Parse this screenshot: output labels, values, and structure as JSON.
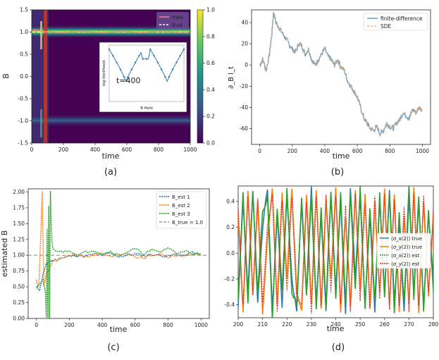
{
  "chart_data": [
    {
      "id": "a",
      "panel_label": "(a)",
      "type": "heatmap",
      "xlabel": "time",
      "ylabel": "B",
      "xlim": [
        0,
        1000
      ],
      "ylim": [
        -1.5,
        1.5
      ],
      "xticks": [
        "0",
        "200",
        "400",
        "600",
        "800",
        "1000"
      ],
      "yticks": [
        "-1.5",
        "-1.0",
        "-0.5",
        "0.0",
        "0.5",
        "1.0",
        "1.5"
      ],
      "colorbar": {
        "range": [
          0.0,
          1.0
        ],
        "ticks": [
          "0.0",
          "0.2",
          "0.4",
          "0.6",
          "0.8",
          "1.0"
        ]
      },
      "legend": [
        {
          "name": "max",
          "color": "#e9877f"
        },
        {
          "name": "true",
          "color": "#ffffff"
        }
      ],
      "true_value": 1.0,
      "ridges": [
        1.0,
        -1.0
      ],
      "inset": {
        "annotation": "t=400",
        "xlabel": "B field",
        "ylabel": "log-likelihood"
      }
    },
    {
      "id": "b",
      "panel_label": "(b)",
      "type": "line",
      "xlabel": "time",
      "ylabel": "∂_B l_t",
      "xlim": [
        -50,
        1050
      ],
      "ylim": [
        -75,
        52
      ],
      "xticks": [
        "0",
        "200",
        "400",
        "600",
        "800",
        "1000"
      ],
      "yticks": [
        "-60",
        "-40",
        "-20",
        "0",
        "20",
        "40"
      ],
      "legend": [
        {
          "name": "finite-difference",
          "color": "#5a9fd4"
        },
        {
          "name": "SDE",
          "color": "#f5a65b"
        }
      ],
      "series": [
        {
          "name": "finite-difference",
          "x": [
            0,
            20,
            40,
            60,
            75,
            85,
            100,
            120,
            140,
            160,
            180,
            200,
            220,
            240,
            260,
            280,
            300,
            320,
            340,
            360,
            380,
            400,
            420,
            440,
            460,
            480,
            500,
            520,
            540,
            560,
            580,
            600,
            620,
            640,
            660,
            680,
            700,
            720,
            740,
            760,
            780,
            800,
            820,
            840,
            860,
            880,
            900,
            920,
            940,
            960,
            980,
            1000
          ],
          "y": [
            0,
            5,
            -5,
            10,
            30,
            50,
            40,
            35,
            30,
            25,
            20,
            15,
            12,
            20,
            18,
            10,
            15,
            5,
            0,
            5,
            10,
            15,
            8,
            5,
            0,
            5,
            -2,
            -5,
            -15,
            -20,
            -25,
            -30,
            -40,
            -50,
            -55,
            -60,
            -62,
            -58,
            -65,
            -62,
            -55,
            -58,
            -60,
            -55,
            -52,
            -45,
            -48,
            -50,
            -42,
            -45,
            -40,
            -42
          ]
        }
      ]
    },
    {
      "id": "c",
      "panel_label": "(c)",
      "type": "line",
      "xlabel": "time",
      "ylabel": "estimated B",
      "xlim": [
        -50,
        1050
      ],
      "ylim": [
        0.0,
        2.05
      ],
      "xticks": [
        "0",
        "200",
        "400",
        "600",
        "800",
        "1000"
      ],
      "yticks": [
        "0.00",
        "0.25",
        "0.50",
        "0.75",
        "1.00",
        "1.25",
        "1.50",
        "1.75",
        "2.00"
      ],
      "legend_labels": [
        "B_est 1",
        "B_est 2",
        "B_est 3",
        "B_true = 1.0"
      ],
      "true_value": 1.0,
      "series": [
        {
          "name": "B_est 1",
          "color": "#2f77b4",
          "x": [
            0,
            20,
            40,
            60,
            80,
            100,
            150,
            200,
            250,
            300,
            350,
            400,
            450,
            500,
            550,
            600,
            650,
            700,
            750,
            800,
            850,
            900,
            950,
            1000
          ],
          "y": [
            0.5,
            0.45,
            0.7,
            0.85,
            0.9,
            0.92,
            0.95,
            0.98,
            1.0,
            0.98,
            1.02,
            1.0,
            1.03,
            0.98,
            1.0,
            1.02,
            0.99,
            1.01,
            1.0,
            0.98,
            1.02,
            0.99,
            1.05,
            1.0
          ]
        },
        {
          "name": "B_est 2",
          "color": "#ff7f0e",
          "x": [
            0,
            15,
            25,
            35,
            45,
            60,
            80,
            100,
            150,
            200,
            250,
            300,
            350,
            400,
            450,
            500,
            550,
            600,
            650,
            700,
            750,
            800,
            850,
            900,
            950,
            1000
          ],
          "y": [
            0.6,
            0.5,
            1.2,
            2.0,
            0.5,
            0.7,
            0.8,
            0.9,
            0.95,
            1.0,
            1.02,
            0.98,
            1.0,
            1.03,
            0.97,
            1.0,
            1.04,
            0.98,
            0.95,
            1.0,
            1.02,
            0.97,
            1.0,
            0.98,
            1.03,
            1.0
          ]
        },
        {
          "name": "B_est 3",
          "color": "#2ca02c",
          "x": [
            0,
            20,
            40,
            55,
            60,
            65,
            70,
            75,
            80,
            85,
            90,
            95,
            100,
            150,
            200,
            250,
            300,
            350,
            400,
            450,
            500,
            550,
            600,
            650,
            700,
            750,
            800,
            850,
            900,
            950,
            1000
          ],
          "y": [
            0.5,
            0.55,
            0.6,
            0.4,
            0.0,
            1.4,
            0.0,
            1.8,
            0.0,
            2.0,
            1.5,
            1.2,
            1.1,
            1.05,
            1.08,
            1.0,
            1.05,
            1.08,
            1.02,
            1.06,
            1.0,
            1.05,
            1.1,
            1.02,
            1.08,
            1.05,
            1.12,
            1.03,
            1.08,
            1.0,
            1.03
          ]
        }
      ]
    },
    {
      "id": "d",
      "panel_label": "(d)",
      "type": "line",
      "xlabel": "time",
      "ylabel": "",
      "xlim": [
        200,
        280
      ],
      "ylim": [
        -0.5,
        0.52
      ],
      "xticks": [
        "200",
        "210",
        "220",
        "230",
        "240",
        "250",
        "260",
        "270",
        "280"
      ],
      "yticks": [
        "-0.4",
        "-0.2",
        "0.0",
        "0.2",
        "0.4"
      ],
      "legend_labels": [
        "⟨σ_x(2)⟩ true",
        "⟨σ_y(2)⟩ true",
        "⟨σ_x(2)⟩ est",
        "⟨σ_y(2)⟩ est"
      ],
      "series": [
        {
          "name": "⟨σ_x(2)⟩ true",
          "color": "#2f77b4",
          "x": [
            200,
            202,
            204,
            206,
            208,
            210,
            212,
            214,
            216,
            218,
            220,
            222,
            224,
            226,
            228,
            230,
            232,
            234,
            236,
            238,
            240,
            242,
            244,
            246,
            248,
            250,
            252,
            254,
            256,
            258,
            260,
            262,
            264,
            266,
            268,
            270,
            272,
            274,
            276,
            278,
            280
          ],
          "y": [
            -0.4,
            0.4,
            -0.3,
            0.5,
            -0.4,
            0.2,
            0.5,
            -0.45,
            0.3,
            -0.4,
            0.45,
            -0.2,
            -0.45,
            0.4,
            -0.3,
            0.5,
            -0.4,
            0.3,
            -0.45,
            0.45,
            -0.3,
            0.4,
            -0.45,
            0.5,
            -0.2,
            0.45,
            -0.4,
            0.3,
            -0.45,
            0.4,
            -0.3,
            0.5,
            -0.4,
            0.2,
            -0.45,
            0.45,
            -0.3,
            0.4,
            -0.4,
            0.3,
            -0.2
          ]
        },
        {
          "name": "⟨σ_y(2)⟩ true",
          "color": "#ff7f0e",
          "x": [
            200,
            202,
            204,
            206,
            208,
            210,
            212,
            214,
            216,
            218,
            220,
            222,
            224,
            226,
            228,
            230,
            232,
            234,
            236,
            238,
            240,
            242,
            244,
            246,
            248,
            250,
            252,
            254,
            256,
            258,
            260,
            262,
            264,
            266,
            268,
            270,
            272,
            274,
            276,
            278,
            280
          ],
          "y": [
            0.3,
            -0.45,
            0.5,
            -0.3,
            0.4,
            -0.45,
            0.1,
            0.5,
            -0.4,
            0.45,
            -0.2,
            0.5,
            -0.3,
            -0.45,
            0.45,
            -0.4,
            0.5,
            -0.45,
            0.4,
            -0.2,
            0.5,
            -0.45,
            0.3,
            -0.4,
            0.5,
            -0.3,
            0.45,
            -0.45,
            0.4,
            -0.3,
            0.5,
            -0.4,
            0.45,
            -0.45,
            0.3,
            -0.4,
            0.5,
            -0.45,
            0.4,
            -0.35,
            0.3
          ]
        },
        {
          "name": "⟨σ_x(2)⟩ est",
          "color": "#2ca02c",
          "x": [
            200,
            202,
            204,
            206,
            208,
            210,
            212,
            214,
            216,
            218,
            220,
            222,
            224,
            226,
            228,
            230,
            232,
            234,
            236,
            238,
            240,
            242,
            244,
            246,
            248,
            250,
            252,
            254,
            256,
            258,
            260,
            262,
            264,
            266,
            268,
            270,
            272,
            274,
            276,
            278,
            280
          ],
          "y": [
            -0.35,
            0.45,
            -0.4,
            0.5,
            -0.3,
            0.3,
            0.45,
            -0.5,
            0.35,
            -0.3,
            0.5,
            -0.3,
            -0.4,
            0.45,
            -0.35,
            0.45,
            -0.45,
            0.35,
            -0.4,
            0.5,
            -0.35,
            0.45,
            -0.4,
            0.45,
            -0.3,
            0.5,
            -0.45,
            0.35,
            -0.4,
            0.45,
            -0.35,
            0.45,
            -0.45,
            0.3,
            -0.4,
            0.5,
            -0.35,
            0.45,
            -0.45,
            0.35,
            -0.3
          ]
        },
        {
          "name": "⟨σ_y(2)⟩ est",
          "color": "#d62728",
          "x": [
            200,
            202,
            204,
            206,
            208,
            210,
            212,
            214,
            216,
            218,
            220,
            222,
            224,
            226,
            228,
            230,
            232,
            234,
            236,
            238,
            240,
            242,
            244,
            246,
            248,
            250,
            252,
            254,
            256,
            258,
            260,
            262,
            264,
            266,
            268,
            270,
            272,
            274,
            276,
            278,
            280
          ],
          "y": [
            0.35,
            -0.4,
            0.45,
            -0.35,
            0.45,
            -0.4,
            0.2,
            0.45,
            -0.45,
            0.4,
            -0.3,
            0.45,
            -0.35,
            -0.4,
            0.4,
            -0.45,
            0.45,
            -0.4,
            0.45,
            -0.3,
            0.45,
            -0.4,
            0.35,
            -0.45,
            0.45,
            -0.35,
            0.4,
            -0.4,
            0.45,
            -0.35,
            0.45,
            -0.45,
            0.4,
            -0.4,
            0.35,
            -0.45,
            0.45,
            -0.4,
            0.45,
            -0.3,
            0.35
          ]
        }
      ]
    }
  ]
}
